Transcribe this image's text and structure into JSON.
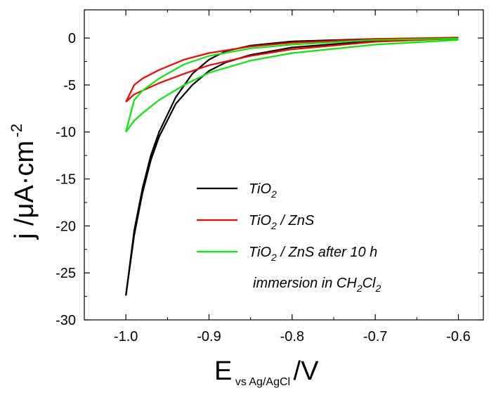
{
  "chart_data": {
    "type": "line",
    "title": "",
    "xlabel_main": "E",
    "xlabel_sub": "vs Ag/AgCl",
    "xlabel_unit": "/V",
    "ylabel_main": "j /μA·cm",
    "ylabel_sup": "-2",
    "xlim": [
      -1.05,
      -0.57
    ],
    "ylim": [
      -30,
      3
    ],
    "x_ticks": [
      -1.0,
      -0.9,
      -0.8,
      -0.7,
      -0.6
    ],
    "x_tick_labels": [
      "-1.0",
      "-0.9",
      "-0.8",
      "-0.7",
      "-0.6"
    ],
    "y_ticks": [
      0,
      -5,
      -10,
      -15,
      -20,
      -25,
      -30
    ],
    "y_tick_labels": [
      "0",
      "-5",
      "-10",
      "-15",
      "-20",
      "-25",
      "-30"
    ],
    "grid": false,
    "legend_position": "center-right",
    "legend": [
      {
        "parts": [
          {
            "t": "TiO"
          },
          {
            "t": "2",
            "sub": true
          }
        ],
        "color": "#000000"
      },
      {
        "parts": [
          {
            "t": "TiO"
          },
          {
            "t": "2",
            "sub": true
          },
          {
            "t": " / ZnS"
          }
        ],
        "color": "#ff0000"
      },
      {
        "parts": [
          {
            "t": "TiO"
          },
          {
            "t": "2",
            "sub": true
          },
          {
            "t": " / ZnS  after  10 h"
          }
        ],
        "color": "#00ee00"
      },
      {
        "parts": [
          {
            "t": "immersion in CH"
          },
          {
            "t": "2",
            "sub": true
          },
          {
            "t": "Cl"
          },
          {
            "t": "2",
            "sub": true
          }
        ],
        "color": null
      }
    ],
    "series": [
      {
        "label_ref": 0,
        "color": "#000000",
        "forward": {
          "x": [
            -0.6,
            -0.7,
            -0.8,
            -0.85,
            -0.88,
            -0.9,
            -0.92,
            -0.94,
            -0.96,
            -0.97,
            -0.98,
            -0.99,
            -1.0
          ],
          "y": [
            0.0,
            -0.1,
            -0.35,
            -0.8,
            -1.4,
            -2.3,
            -3.8,
            -6.3,
            -10.0,
            -12.5,
            -16.0,
            -20.5,
            -27.4
          ]
        },
        "reverse": {
          "x": [
            -1.0,
            -0.99,
            -0.98,
            -0.97,
            -0.96,
            -0.94,
            -0.92,
            -0.9,
            -0.88,
            -0.85,
            -0.8,
            -0.7,
            -0.6
          ],
          "y": [
            -27.4,
            -21.0,
            -16.5,
            -13.0,
            -10.5,
            -7.0,
            -5.0,
            -3.5,
            -2.6,
            -1.8,
            -1.0,
            -0.3,
            -0.05
          ]
        }
      },
      {
        "label_ref": 1,
        "color": "#ff0000",
        "forward": {
          "x": [
            -0.6,
            -0.7,
            -0.8,
            -0.85,
            -0.9,
            -0.93,
            -0.96,
            -0.98,
            -0.99,
            -1.0
          ],
          "y": [
            0.05,
            -0.1,
            -0.5,
            -0.9,
            -1.6,
            -2.3,
            -3.4,
            -4.3,
            -5.0,
            -6.8
          ]
        },
        "reverse": {
          "x": [
            -1.0,
            -0.99,
            -0.98,
            -0.96,
            -0.93,
            -0.9,
            -0.85,
            -0.8,
            -0.7,
            -0.6
          ],
          "y": [
            -6.8,
            -6.0,
            -5.6,
            -4.8,
            -3.8,
            -2.9,
            -1.9,
            -1.2,
            -0.4,
            -0.05
          ]
        }
      },
      {
        "label_ref": 2,
        "color": "#00ee00",
        "forward": {
          "x": [
            -0.6,
            -0.7,
            -0.8,
            -0.85,
            -0.9,
            -0.93,
            -0.96,
            -0.98,
            -0.99,
            -1.0
          ],
          "y": [
            -0.05,
            -0.2,
            -0.7,
            -1.1,
            -1.9,
            -2.8,
            -4.3,
            -5.6,
            -6.6,
            -10.0
          ]
        },
        "reverse": {
          "x": [
            -1.0,
            -0.99,
            -0.98,
            -0.96,
            -0.93,
            -0.9,
            -0.85,
            -0.8,
            -0.7,
            -0.6
          ],
          "y": [
            -10.0,
            -8.8,
            -8.0,
            -6.6,
            -5.0,
            -3.7,
            -2.4,
            -1.6,
            -0.7,
            -0.2
          ]
        }
      }
    ]
  }
}
